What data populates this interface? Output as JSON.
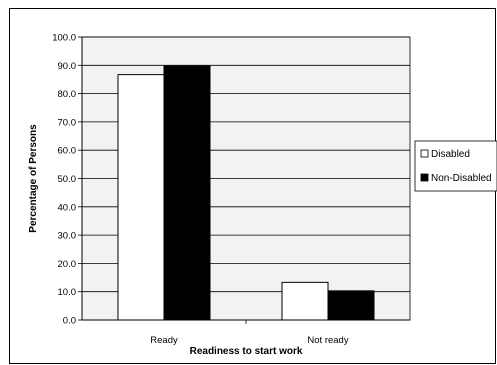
{
  "chart_data": {
    "type": "bar",
    "xlabel": "Readiness to start work",
    "ylabel": "Percentage of Persons",
    "categories": [
      "Ready",
      "Not ready"
    ],
    "series": [
      {
        "name": "Disabled",
        "values": [
          86.7,
          13.3
        ],
        "color": "#ffffff"
      },
      {
        "name": "Non-Disabled",
        "values": [
          89.7,
          10.3
        ],
        "color": "#000000"
      }
    ],
    "ylim": [
      0,
      100
    ],
    "yticks": [
      "0.0",
      "10.0",
      "20.0",
      "30.0",
      "40.0",
      "50.0",
      "60.0",
      "70.0",
      "80.0",
      "90.0",
      "100.0"
    ],
    "grid": true,
    "plot_background": "#f2f2f2",
    "legend_position": "right"
  }
}
